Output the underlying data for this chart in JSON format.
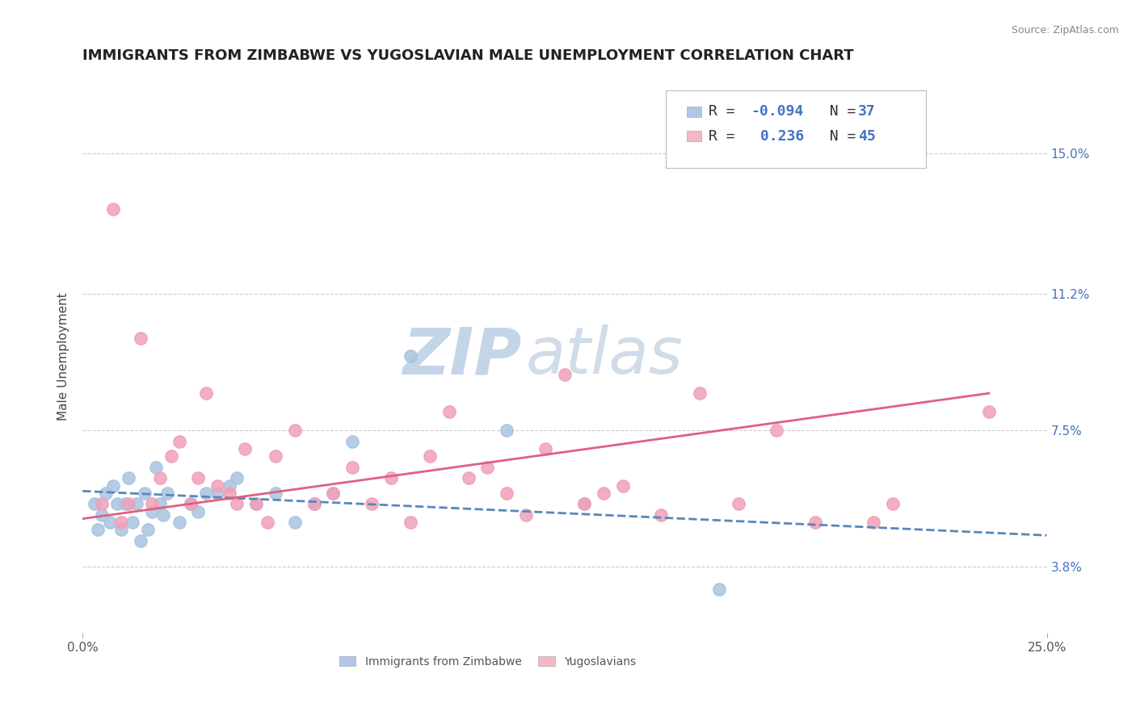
{
  "title": "IMMIGRANTS FROM ZIMBABWE VS YUGOSLAVIAN MALE UNEMPLOYMENT CORRELATION CHART",
  "source_text": "Source: ZipAtlas.com",
  "ylabel": "Male Unemployment",
  "xlim": [
    0.0,
    25.0
  ],
  "ylim": [
    2.0,
    17.0
  ],
  "yticks": [
    3.8,
    7.5,
    11.2,
    15.0
  ],
  "ytick_labels": [
    "3.8%",
    "7.5%",
    "11.2%",
    "15.0%"
  ],
  "xtick_labels": [
    "0.0%",
    "25.0%"
  ],
  "legend_entries": [
    {
      "label_r": "R = ",
      "label_v": "-0.094",
      "label_n": "  N = ",
      "label_nv": "37",
      "color": "#aec6e8"
    },
    {
      "label_r": "R =  ",
      "label_v": "0.236",
      "label_n": "  N = ",
      "label_nv": "45",
      "color": "#f4b8c4"
    }
  ],
  "series_zimbabwe": {
    "color": "#a8c4e0",
    "x": [
      0.3,
      0.4,
      0.5,
      0.6,
      0.7,
      0.8,
      0.9,
      1.0,
      1.1,
      1.2,
      1.3,
      1.4,
      1.5,
      1.6,
      1.7,
      1.8,
      1.9,
      2.0,
      2.1,
      2.2,
      2.5,
      2.8,
      3.0,
      3.2,
      3.5,
      3.8,
      4.0,
      4.5,
      5.0,
      5.5,
      6.0,
      6.5,
      7.0,
      8.5,
      11.0,
      13.0,
      16.5
    ],
    "y": [
      5.5,
      4.8,
      5.2,
      5.8,
      5.0,
      6.0,
      5.5,
      4.8,
      5.5,
      6.2,
      5.0,
      5.5,
      4.5,
      5.8,
      4.8,
      5.3,
      6.5,
      5.5,
      5.2,
      5.8,
      5.0,
      5.5,
      5.3,
      5.8,
      5.8,
      6.0,
      6.2,
      5.5,
      5.8,
      5.0,
      5.5,
      5.8,
      7.2,
      9.5,
      7.5,
      5.5,
      3.2
    ]
  },
  "series_yugoslavians": {
    "color": "#f0a0b8",
    "x": [
      0.5,
      0.8,
      1.0,
      1.2,
      1.5,
      1.8,
      2.0,
      2.3,
      2.5,
      2.8,
      3.0,
      3.2,
      3.5,
      3.8,
      4.0,
      4.2,
      4.5,
      4.8,
      5.0,
      5.5,
      6.0,
      6.5,
      7.0,
      7.5,
      8.0,
      8.5,
      9.0,
      9.5,
      10.0,
      10.5,
      11.0,
      11.5,
      12.0,
      12.5,
      13.0,
      13.5,
      14.0,
      15.0,
      16.0,
      17.0,
      18.0,
      19.0,
      20.5,
      21.0,
      23.5
    ],
    "y": [
      5.5,
      13.5,
      5.0,
      5.5,
      10.0,
      5.5,
      6.2,
      6.8,
      7.2,
      5.5,
      6.2,
      8.5,
      6.0,
      5.8,
      5.5,
      7.0,
      5.5,
      5.0,
      6.8,
      7.5,
      5.5,
      5.8,
      6.5,
      5.5,
      6.2,
      5.0,
      6.8,
      8.0,
      6.2,
      6.5,
      5.8,
      5.2,
      7.0,
      9.0,
      5.5,
      5.8,
      6.0,
      5.2,
      8.5,
      5.5,
      7.5,
      5.0,
      5.0,
      5.5,
      8.0
    ]
  },
  "trend_zimbabwe": {
    "color": "#5588bb",
    "x_start": 0.0,
    "x_end": 25.0,
    "y_start": 5.85,
    "y_end": 4.65
  },
  "trend_yugoslavians": {
    "color": "#e06080",
    "x_start": 0.0,
    "x_end": 23.5,
    "y_start": 5.1,
    "y_end": 8.5
  },
  "watermark_zip": "ZIP",
  "watermark_atlas": "atlas",
  "watermark_color_zip": "#c5d5e8",
  "watermark_color_atlas": "#d0dce8",
  "background_color": "#ffffff",
  "grid_color": "#cccccc",
  "title_fontsize": 13,
  "axis_label_fontsize": 11,
  "tick_label_fontsize": 11,
  "tick_color": "#4472c4",
  "legend_fontsize": 13
}
